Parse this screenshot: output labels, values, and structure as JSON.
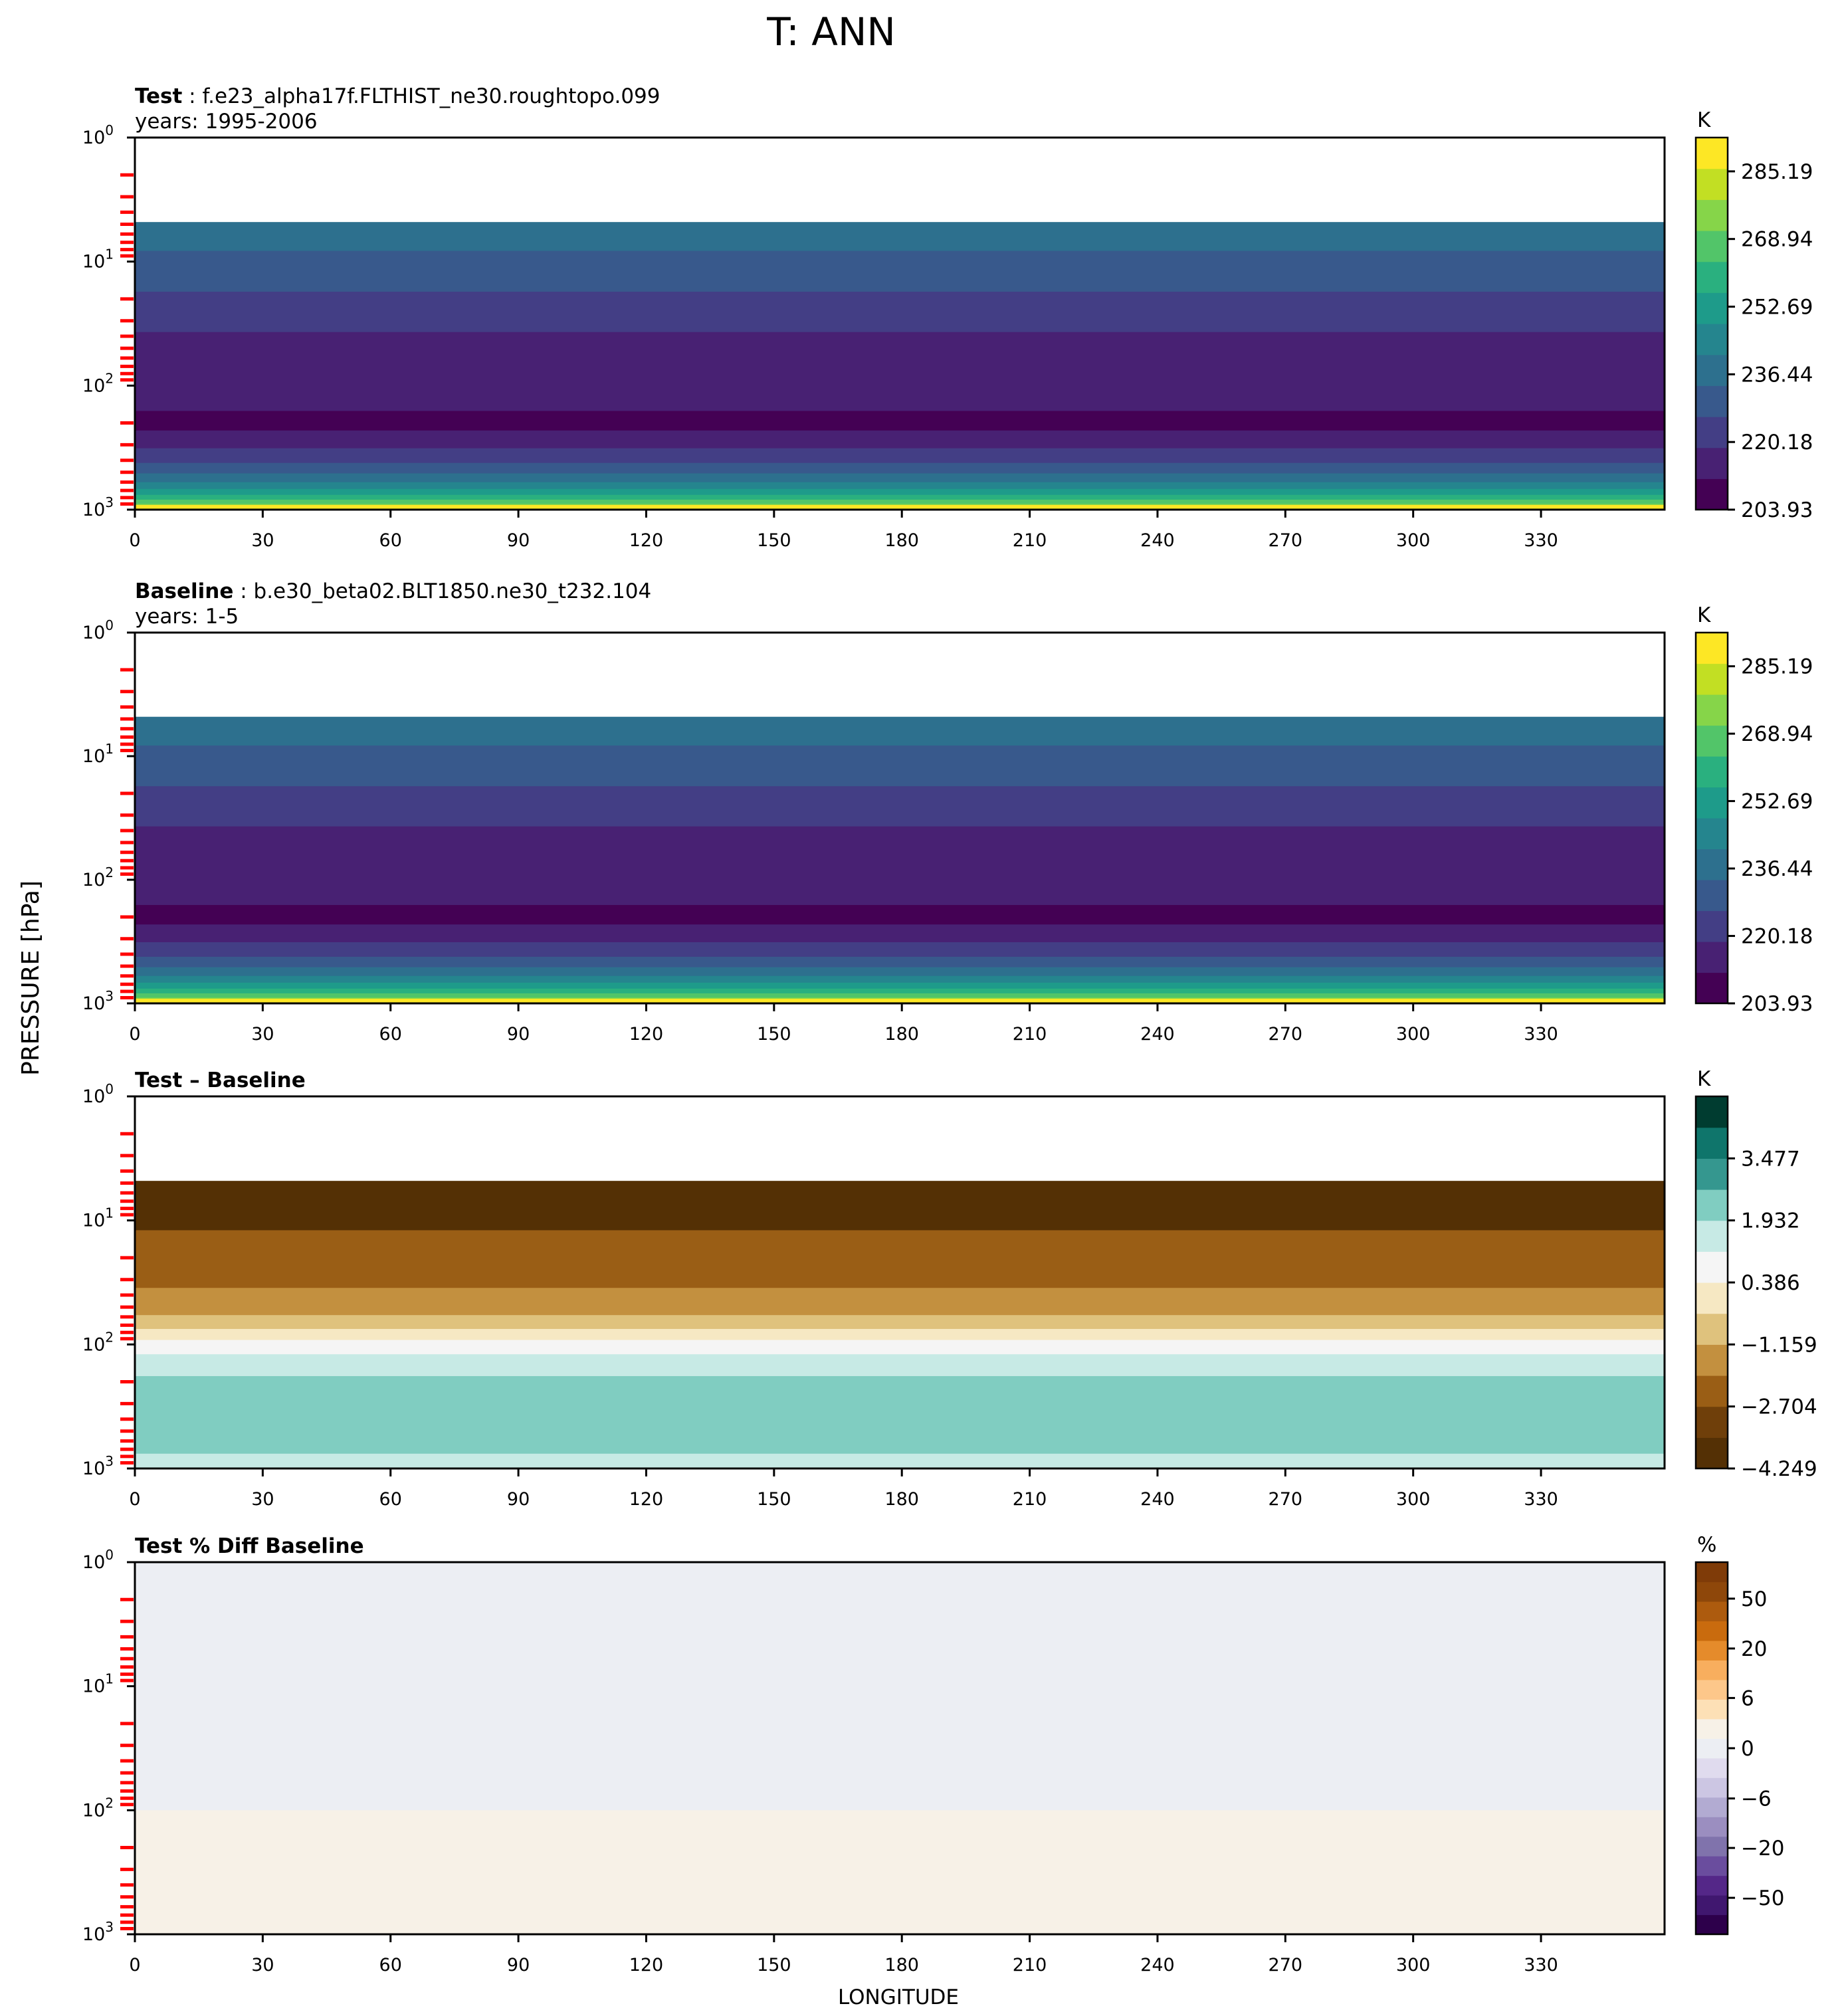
{
  "figure": {
    "title": "T: ANN",
    "ylabel": "PRESSURE [hPa]",
    "xlabel": "LONGITUDE"
  },
  "colors": {
    "viridis": [
      "#440154",
      "#482173",
      "#433e85",
      "#38598c",
      "#2d708e",
      "#25858e",
      "#1e9b8a",
      "#2ab07f",
      "#52c569",
      "#86d549",
      "#c2df23",
      "#fde725"
    ],
    "brbg": [
      "#543005",
      "#6f3f0a",
      "#9a5e15",
      "#c3903f",
      "#dfc27d",
      "#f6e8c3",
      "#f5f5f5",
      "#c7eae5",
      "#80cdc1",
      "#35978f",
      "#0f756b",
      "#003c30"
    ],
    "puor": [
      "#2d004b",
      "#40176f",
      "#542788",
      "#6a4d9e",
      "#8073ac",
      "#9b8ec0",
      "#b2abd2",
      "#ccc6e3",
      "#e0dbee",
      "#eceef3",
      "#f7f1e7",
      "#fde0b6",
      "#fdc78a",
      "#f8ae5e",
      "#e58b2b",
      "#c96b0e",
      "#ad5b0e",
      "#8e470a",
      "#7f3b08"
    ],
    "pressure_tick_marks": "#ff0000"
  },
  "chart_data": [
    {
      "id": "test",
      "type": "contourf",
      "label": "Test",
      "case": "f.e23_alpha17f.FLTHIST_ne30.roughtopo.099",
      "years": "years: 1995-2006",
      "x_ticks": [
        "0",
        "30",
        "60",
        "90",
        "120",
        "150",
        "180",
        "210",
        "240",
        "270",
        "300",
        "330"
      ],
      "xlim": [
        0,
        359
      ],
      "y_scale": "log",
      "y_inverted": true,
      "ylim": [
        1,
        1000
      ],
      "data_top_pressure": 4.8,
      "y_ticks": [
        {
          "base": "10",
          "exp": "0"
        },
        {
          "base": "10",
          "exp": "1"
        },
        {
          "base": "10",
          "exp": "2"
        },
        {
          "base": "10",
          "exp": "3"
        }
      ],
      "colorbar": {
        "unit": "K",
        "tick_labels": [
          "285.19",
          "268.94",
          "252.69",
          "236.44",
          "220.18",
          "203.93"
        ],
        "tick_values": [
          285.19,
          268.94,
          252.69,
          236.44,
          220.18,
          203.93
        ],
        "min": 203.93,
        "max": 293.31,
        "colormap": "viridis"
      },
      "approx_isobars_hPa": [
        {
          "level": 0,
          "edge": null
        },
        {
          "level": 4,
          "edge": 4.8
        },
        {
          "level": 3,
          "edge": 8.2
        },
        {
          "level": 2,
          "edge": 17.5
        },
        {
          "level": 1,
          "edge": 37
        },
        {
          "level": 0,
          "edge": 160
        },
        {
          "level": 1,
          "edge": 230
        },
        {
          "level": 2,
          "edge": 320
        },
        {
          "level": 3,
          "edge": 420
        },
        {
          "level": 4,
          "edge": 510
        },
        {
          "level": 5,
          "edge": 600
        },
        {
          "level": 6,
          "edge": 680
        },
        {
          "level": 7,
          "edge": 760
        },
        {
          "level": 8,
          "edge": 830
        },
        {
          "level": 9,
          "edge": 900
        },
        {
          "level": 10,
          "edge": 950
        },
        {
          "level": 11,
          "edge": 980
        }
      ]
    },
    {
      "id": "baseline",
      "type": "contourf",
      "label": "Baseline",
      "case": "b.e30_beta02.BLT1850.ne30_t232.104",
      "years": "years: 1-5",
      "x_ticks": [
        "0",
        "30",
        "60",
        "90",
        "120",
        "150",
        "180",
        "210",
        "240",
        "270",
        "300",
        "330"
      ],
      "xlim": [
        0,
        359
      ],
      "y_scale": "log",
      "y_inverted": true,
      "ylim": [
        1,
        1000
      ],
      "data_top_pressure": 4.8,
      "y_ticks": [
        {
          "base": "10",
          "exp": "0"
        },
        {
          "base": "10",
          "exp": "1"
        },
        {
          "base": "10",
          "exp": "2"
        },
        {
          "base": "10",
          "exp": "3"
        }
      ],
      "colorbar": {
        "unit": "K",
        "tick_labels": [
          "285.19",
          "268.94",
          "252.69",
          "236.44",
          "220.18",
          "203.93"
        ],
        "tick_values": [
          285.19,
          268.94,
          252.69,
          236.44,
          220.18,
          203.93
        ],
        "min": 203.93,
        "max": 293.31,
        "colormap": "viridis"
      },
      "approx_isobars_hPa": [
        {
          "level": 4,
          "edge": 4.8
        },
        {
          "level": 3,
          "edge": 8.2
        },
        {
          "level": 2,
          "edge": 17.5
        },
        {
          "level": 1,
          "edge": 37
        },
        {
          "level": 0,
          "edge": 160
        },
        {
          "level": 1,
          "edge": 230
        },
        {
          "level": 2,
          "edge": 320
        },
        {
          "level": 3,
          "edge": 420
        },
        {
          "level": 4,
          "edge": 510
        },
        {
          "level": 5,
          "edge": 600
        },
        {
          "level": 6,
          "edge": 680
        },
        {
          "level": 7,
          "edge": 760
        },
        {
          "level": 8,
          "edge": 830
        },
        {
          "level": 9,
          "edge": 900
        },
        {
          "level": 10,
          "edge": 950
        },
        {
          "level": 11,
          "edge": 980
        }
      ]
    },
    {
      "id": "diff",
      "type": "contourf",
      "label": "Test – Baseline",
      "x_ticks": [
        "0",
        "30",
        "60",
        "90",
        "120",
        "150",
        "180",
        "210",
        "240",
        "270",
        "300",
        "330"
      ],
      "xlim": [
        0,
        359
      ],
      "y_scale": "log",
      "y_inverted": true,
      "ylim": [
        1,
        1000
      ],
      "data_top_pressure": 4.8,
      "y_ticks": [
        {
          "base": "10",
          "exp": "0"
        },
        {
          "base": "10",
          "exp": "1"
        },
        {
          "base": "10",
          "exp": "2"
        },
        {
          "base": "10",
          "exp": "3"
        }
      ],
      "colorbar": {
        "unit": "K",
        "tick_labels": [
          "3.477",
          "1.932",
          "0.386",
          "−1.159",
          "−2.704",
          "−4.249"
        ],
        "tick_values": [
          3.477,
          1.932,
          0.386,
          -1.159,
          -2.704,
          -4.249
        ],
        "min": -4.249,
        "max": 5.022,
        "colormap": "brbg"
      },
      "bands_hPa": [
        {
          "level": 0,
          "from": 4.8,
          "to": 12
        },
        {
          "level": 2,
          "from": 12,
          "to": 35
        },
        {
          "level": 3,
          "from": 35,
          "to": 58
        },
        {
          "level": 4,
          "from": 58,
          "to": 75
        },
        {
          "level": 5,
          "from": 75,
          "to": 92
        },
        {
          "level": 6,
          "from": 92,
          "to": 120
        },
        {
          "level": 7,
          "from": 120,
          "to": 180
        },
        {
          "level": 8,
          "from": 180,
          "to": 760
        },
        {
          "level": 7,
          "from": 760,
          "to": 1000
        }
      ]
    },
    {
      "id": "pctdiff",
      "type": "contourf",
      "label": "Test % Diff Baseline",
      "x_ticks": [
        "0",
        "30",
        "60",
        "90",
        "120",
        "150",
        "180",
        "210",
        "240",
        "270",
        "300",
        "330"
      ],
      "xlim": [
        0,
        359
      ],
      "y_scale": "log",
      "y_inverted": true,
      "ylim": [
        1,
        1000
      ],
      "y_ticks": [
        {
          "base": "10",
          "exp": "0"
        },
        {
          "base": "10",
          "exp": "1"
        },
        {
          "base": "10",
          "exp": "2"
        },
        {
          "base": "10",
          "exp": "3"
        }
      ],
      "colorbar": {
        "unit": "%",
        "tick_labels": [
          "50",
          "20",
          "6",
          "0",
          "−6",
          "−20",
          "−50"
        ],
        "tick_values": [
          50,
          20,
          6,
          0,
          -6,
          -20,
          -50
        ],
        "colormap": "puor"
      },
      "bands_hPa": [
        {
          "level": 9,
          "from": 1,
          "to": 100
        },
        {
          "level": 10,
          "from": 100,
          "to": 1000
        }
      ]
    }
  ]
}
